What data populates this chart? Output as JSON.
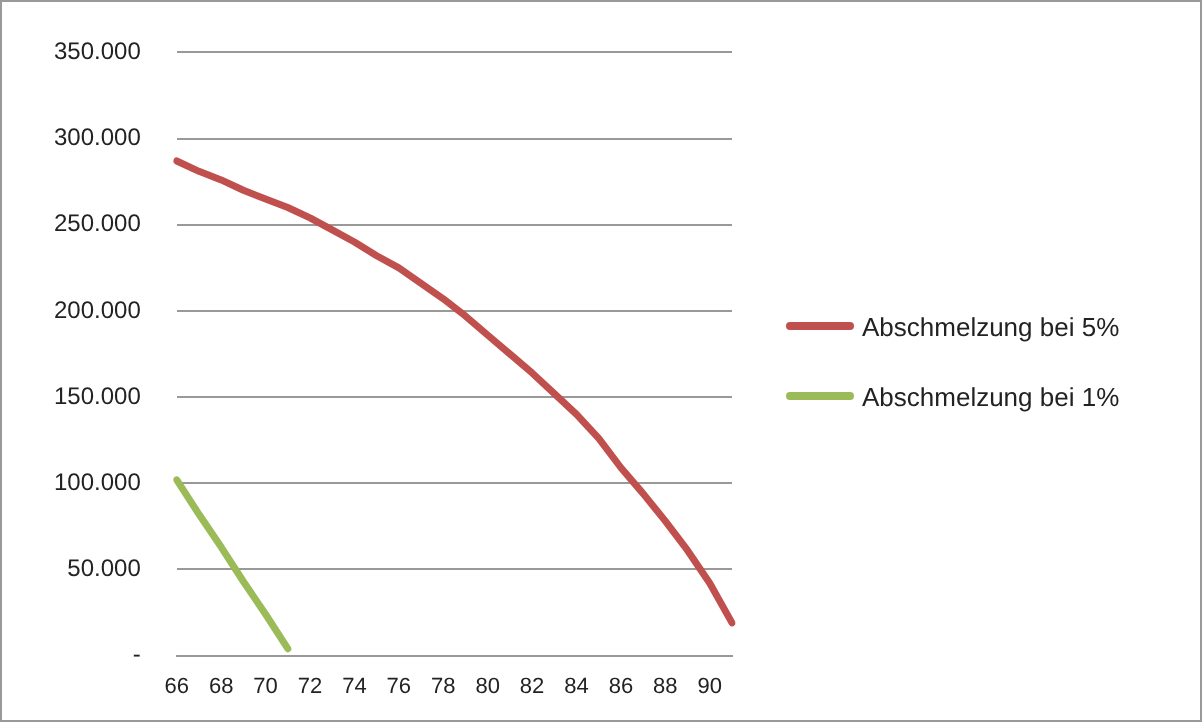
{
  "chart_data": {
    "type": "line",
    "categories": [
      "66",
      null,
      "68",
      null,
      "70",
      null,
      "72",
      null,
      "74",
      null,
      "76",
      null,
      "78",
      null,
      "80",
      null,
      "82",
      null,
      "84",
      null,
      "86",
      null,
      "88",
      null,
      "90",
      null
    ],
    "series": [
      {
        "name": "Abschmelzung bei 5%",
        "color": "#c0504d",
        "values": [
          287000,
          281000,
          276000,
          270000,
          265000,
          260000,
          254000,
          247000,
          240000,
          232000,
          225000,
          216000,
          207000,
          197000,
          186000,
          175000,
          164000,
          152000,
          140000,
          126000,
          109000,
          94000,
          78000,
          61000,
          42000,
          19000
        ]
      },
      {
        "name": "Abschmelzung bei 1%",
        "color": "#9bbb59",
        "values": [
          102000,
          82000,
          63000,
          43000,
          24000,
          4000,
          null,
          null,
          null,
          null,
          null,
          null,
          null,
          null,
          null,
          null,
          null,
          null,
          null,
          null,
          null,
          null,
          null,
          null,
          null,
          null
        ]
      }
    ],
    "ylim": [
      0,
      350000
    ],
    "yticks": [
      {
        "value": 0,
        "label": "-"
      },
      {
        "value": 50000,
        "label": "50.000"
      },
      {
        "value": 100000,
        "label": "100.000"
      },
      {
        "value": 150000,
        "label": "150.000"
      },
      {
        "value": 200000,
        "label": "200.000"
      },
      {
        "value": 250000,
        "label": "250.000"
      },
      {
        "value": 300000,
        "label": "300.000"
      },
      {
        "value": 350000,
        "label": "350.000"
      }
    ],
    "grid": "y",
    "legend": "right",
    "marker": "none",
    "line_style": "solid"
  }
}
